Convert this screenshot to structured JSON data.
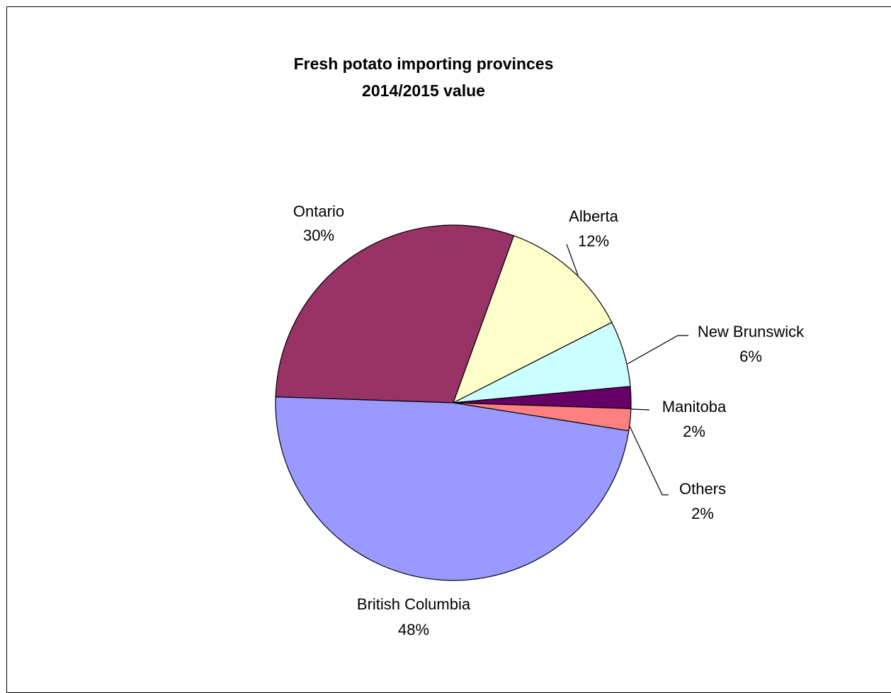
{
  "chart_data": {
    "type": "pie",
    "title": "Fresh potato importing provinces",
    "subtitle": "2014/2015 value",
    "slices": [
      {
        "name": "Ontario",
        "value": 30,
        "label": "30%",
        "color": "#993366"
      },
      {
        "name": "Alberta",
        "value": 12,
        "label": "12%",
        "color": "#FFFFCC"
      },
      {
        "name": "New Brunswick",
        "value": 6,
        "label": "6%",
        "color": "#CCFFFF"
      },
      {
        "name": "Manitoba",
        "value": 2,
        "label": "2%",
        "color": "#660066"
      },
      {
        "name": "Others",
        "value": 2,
        "label": "2%",
        "color": "#FF8080"
      },
      {
        "name": "British Columbia",
        "value": 48,
        "label": "48%",
        "color": "#9999FF"
      }
    ],
    "legend": "none",
    "data_labels": "category name and percentage"
  }
}
